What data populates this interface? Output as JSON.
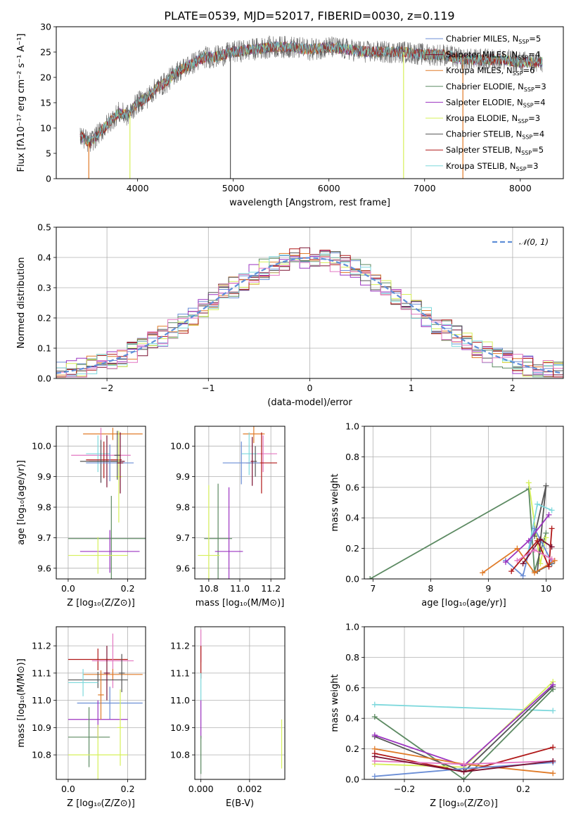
{
  "figure": {
    "title": "PLATE=0539, MJD=52017, FIBERID=0030, z=0.119",
    "colors": {
      "Chabrier MILES": "#6b8ed6",
      "Salpeter MILES": "#7a1030",
      "Kroupa MILES": "#e07b28",
      "Chabrier ELODIE": "#5c8a62",
      "Salpeter ELODIE": "#9b33c0",
      "Kroupa ELODIE": "#d6f05a",
      "Chabrier STELIB": "#555555",
      "Salpeter STELIB": "#b01818",
      "Kroupa STELIB": "#7dd8dc",
      "Pink": "#e377c2"
    }
  },
  "chart_data": [
    {
      "id": "spectrum",
      "type": "line",
      "xlabel": "wavelength [Angstrom, rest frame]",
      "ylabel": "Flux [fλ10⁻¹⁷ erg cm⁻² s⁻¹ A⁻¹]",
      "xlim": [
        3150,
        8450
      ],
      "ylim": [
        0,
        30
      ],
      "xticks": [
        4000,
        5000,
        6000,
        7000,
        8000
      ],
      "yticks": [
        0,
        5,
        10,
        15,
        20,
        25,
        30
      ],
      "grid": false,
      "legend_position": "top-right",
      "legend": [
        {
          "label": "Chabrier MILES, N",
          "sub": "SSP",
          "n": "=5",
          "color": "#6b8ed6"
        },
        {
          "label": "Salpeter MILES, N",
          "sub": "SSP",
          "n": "=4",
          "color": "#7a1030"
        },
        {
          "label": "Kroupa MILES, N",
          "sub": "SSP",
          "n": "=6",
          "color": "#e07b28"
        },
        {
          "label": "Chabrier ELODIE, N",
          "sub": "SSP",
          "n": "=3",
          "color": "#5c8a62"
        },
        {
          "label": "Salpeter ELODIE, N",
          "sub": "SSP",
          "n": "=4",
          "color": "#9b33c0"
        },
        {
          "label": "Kroupa ELODIE, N",
          "sub": "SSP",
          "n": "=3",
          "color": "#d6f05a"
        },
        {
          "label": "Chabrier STELIB, N",
          "sub": "SSP",
          "n": "=4",
          "color": "#555555"
        },
        {
          "label": "Salpeter STELIB, N",
          "sub": "SSP",
          "n": "=5",
          "color": "#b01818"
        },
        {
          "label": "Kroupa STELIB, N",
          "sub": "SSP",
          "n": "=3",
          "color": "#7dd8dc"
        }
      ],
      "envelope": {
        "x": [
          3400,
          3500,
          3600,
          3700,
          3800,
          3900,
          4000,
          4100,
          4200,
          4300,
          4400,
          4500,
          4600,
          4700,
          4800,
          4900,
          5000,
          5200,
          5400,
          5600,
          5800,
          6000,
          6200,
          6400,
          6600,
          6800,
          7000,
          7200,
          7400,
          7600,
          7800,
          8000,
          8200
        ],
        "y": [
          8.5,
          7,
          9,
          11,
          13,
          12.5,
          15,
          16,
          18,
          19,
          21,
          22,
          23,
          24,
          24,
          24.5,
          25,
          25.5,
          26,
          26,
          25.5,
          26,
          25.5,
          25,
          25,
          25,
          24.5,
          24.5,
          23.5,
          23.5,
          23.5,
          23,
          23
        ]
      },
      "dips": [
        {
          "x": 3490,
          "y": 0,
          "color": "#e07b28"
        },
        {
          "x": 3920,
          "y": 0,
          "color": "#d6f05a"
        },
        {
          "x": 4970,
          "y": 0,
          "color": "#555555"
        },
        {
          "x": 6780,
          "y": 0,
          "color": "#d6f05a"
        },
        {
          "x": 7400,
          "y": 0,
          "color": "#e07b28"
        }
      ]
    },
    {
      "id": "residuals",
      "type": "line",
      "xlabel": "(data-model)/error",
      "ylabel": "Normed distribution",
      "xlim": [
        -2.5,
        2.5
      ],
      "ylim": [
        0,
        0.5
      ],
      "xticks": [
        -2,
        -1,
        0,
        1,
        2
      ],
      "xticklabels": [
        "−2",
        "−1",
        "0",
        "1",
        "2"
      ],
      "yticks": [
        0,
        0.1,
        0.2,
        0.3,
        0.4,
        0.5
      ],
      "yticklabels": [
        "0.0",
        "0.1",
        "0.2",
        "0.3",
        "0.4",
        "0.5"
      ],
      "grid": true,
      "legend_position": "top-right",
      "gaussian_label": "𝒩(0, 1)",
      "gaussian_color": "#5f8fd8",
      "bin_width": 0.1
    },
    {
      "id": "age-vs-Z",
      "type": "scatter",
      "xlabel": "Z [log₁₀(Z/Z⊙)]",
      "ylabel": "age  [log₁₀(age/yr)]",
      "xlim": [
        -0.04,
        0.26
      ],
      "ylim": [
        9.565,
        10.065
      ],
      "xticks": [
        0,
        0.2
      ],
      "xticklabels": [
        "0.0",
        "0.2"
      ],
      "yticks": [
        9.6,
        9.7,
        9.8,
        9.9,
        10.0
      ],
      "yticklabels": [
        "9.6",
        "9.7",
        "9.8",
        "9.9",
        "10.0"
      ],
      "grid": true,
      "points": [
        {
          "x": 0.15,
          "xerr": 0.1,
          "y": 10.04,
          "yerr": 0.02,
          "color": "#e07b28"
        },
        {
          "x": 0.11,
          "xerr": 0.1,
          "y": 9.97,
          "yerr": 0.09,
          "color": "#e377c2"
        },
        {
          "x": 0.1,
          "xerr": 0.04,
          "y": 9.975,
          "yerr": 0.06,
          "color": "#7dd8dc"
        },
        {
          "x": 0.13,
          "xerr": 0.06,
          "y": 9.95,
          "yerr": 0.085,
          "color": "#7a1030"
        },
        {
          "x": 0.12,
          "xerr": 0.06,
          "y": 9.955,
          "yerr": 0.06,
          "color": "#b01818"
        },
        {
          "x": 0.11,
          "xerr": 0.07,
          "y": 9.95,
          "yerr": 0.07,
          "color": "#555555"
        },
        {
          "x": 0.14,
          "xerr": 0.08,
          "y": 9.945,
          "yerr": 0.06,
          "color": "#6b8ed6"
        },
        {
          "x": 0.145,
          "xerr": 0.145,
          "y": 9.697,
          "yerr": 0.14,
          "color": "#5c8a62"
        },
        {
          "x": 0.14,
          "xerr": 0.1,
          "y": 9.655,
          "yerr": 0.07,
          "color": "#9b33c0"
        },
        {
          "x": 0.1,
          "xerr": 0.1,
          "y": 9.642,
          "yerr": 0.06,
          "color": "#d6f05a"
        },
        {
          "x": 0.17,
          "xerr": 0.01,
          "y": 9.9,
          "yerr": 0.15,
          "color": "#d6f05a"
        },
        {
          "x": 0.165,
          "xerr": 0.01,
          "y": 9.97,
          "yerr": 0.08,
          "color": "#555555"
        },
        {
          "x": 0.175,
          "xerr": 0.01,
          "y": 9.945,
          "yerr": 0.1,
          "color": "#7a1030"
        }
      ]
    },
    {
      "id": "age-vs-mass",
      "type": "scatter",
      "xlabel": "mass [log₁₀(M/M⊙)]",
      "ylabel": "",
      "xlim": [
        10.71,
        11.29
      ],
      "ylim": [
        9.565,
        10.065
      ],
      "xticks": [
        10.8,
        11.0,
        11.2
      ],
      "xticklabels": [
        "10.8",
        "11.0",
        "11.2"
      ],
      "yticks": [
        9.6,
        9.7,
        9.8,
        9.9,
        10.0
      ],
      "yticklabels": [
        "9.6",
        "9.7",
        "9.8",
        "9.9",
        "10.0"
      ],
      "grid": true,
      "points": [
        {
          "x": 11.09,
          "xerr": 0.07,
          "y": 10.04,
          "yerr": 0.03,
          "color": "#e07b28"
        },
        {
          "x": 11.15,
          "xerr": 0.09,
          "y": 9.975,
          "yerr": 0.06,
          "color": "#e377c2"
        },
        {
          "x": 11.06,
          "xerr": 0.05,
          "y": 9.975,
          "yerr": 0.07,
          "color": "#7dd8dc"
        },
        {
          "x": 11.14,
          "xerr": 0.1,
          "y": 9.945,
          "yerr": 0.1,
          "color": "#b01818"
        },
        {
          "x": 11.1,
          "xerr": 0.01,
          "y": 9.95,
          "yerr": 0.05,
          "color": "#555555"
        },
        {
          "x": 11.01,
          "xerr": 0.12,
          "y": 9.945,
          "yerr": 0.07,
          "color": "#6b8ed6"
        },
        {
          "x": 11.08,
          "xerr": 0.01,
          "y": 9.95,
          "yerr": 0.08,
          "color": "#7a1030"
        },
        {
          "x": 10.86,
          "xerr": 0.09,
          "y": 9.697,
          "yerr": 0.18,
          "color": "#5c8a62"
        },
        {
          "x": 10.93,
          "xerr": 0.09,
          "y": 9.655,
          "yerr": 0.21,
          "color": "#9b33c0"
        },
        {
          "x": 10.8,
          "xerr": 0.07,
          "y": 9.642,
          "yerr": 0.23,
          "color": "#d6f05a"
        }
      ]
    },
    {
      "id": "massweight-vs-age",
      "type": "line",
      "xlabel": "age  [log₁₀(age/yr)]",
      "ylabel": "mass weight",
      "xlim": [
        6.85,
        10.3
      ],
      "ylim": [
        0,
        1.0
      ],
      "xticks": [
        7,
        8,
        9,
        10
      ],
      "xticklabels": [
        "7",
        "8",
        "9",
        "10"
      ],
      "yticks": [
        0,
        0.2,
        0.4,
        0.6,
        0.8,
        1.0
      ],
      "yticklabels": [
        "0.0",
        "0.2",
        "0.4",
        "0.6",
        "0.8",
        "1.0"
      ],
      "grid": true,
      "series": [
        {
          "color": "#5c8a62",
          "x": [
            6.95,
            9.7,
            9.8,
            10.0
          ],
          "y": [
            0.0,
            0.59,
            0.05,
            0.3
          ]
        },
        {
          "color": "#d6f05a",
          "x": [
            9.7,
            9.9,
            10.0
          ],
          "y": [
            0.63,
            0.1,
            0.27
          ]
        },
        {
          "color": "#555555",
          "x": [
            9.8,
            10.0,
            9.85,
            10.1
          ],
          "y": [
            0.28,
            0.61,
            0.05,
            0.1
          ]
        },
        {
          "color": "#7dd8dc",
          "x": [
            9.65,
            9.85,
            10.1
          ],
          "y": [
            0.1,
            0.49,
            0.45
          ]
        },
        {
          "color": "#6b8ed6",
          "x": [
            9.3,
            9.6,
            9.8,
            10.1
          ],
          "y": [
            0.12,
            0.02,
            0.33,
            0.11
          ]
        },
        {
          "color": "#9b33c0",
          "x": [
            9.3,
            9.7,
            10.05
          ],
          "y": [
            0.11,
            0.25,
            0.42
          ]
        },
        {
          "color": "#e07b28",
          "x": [
            8.9,
            9.5,
            9.8,
            10.15
          ],
          "y": [
            0.04,
            0.2,
            0.04,
            0.12
          ]
        },
        {
          "color": "#b01818",
          "x": [
            9.4,
            9.85,
            10.05,
            10.1
          ],
          "y": [
            0.05,
            0.25,
            0.08,
            0.33
          ]
        },
        {
          "color": "#7a1030",
          "x": [
            9.6,
            9.9,
            10.1
          ],
          "y": [
            0.1,
            0.26,
            0.21
          ]
        },
        {
          "color": "#e377c2",
          "x": [
            9.5,
            9.8,
            10.1
          ],
          "y": [
            0.12,
            0.19,
            0.13
          ]
        }
      ]
    },
    {
      "id": "mass-vs-Z",
      "type": "scatter",
      "xlabel": "Z [log₁₀(Z/Z⊙)]",
      "ylabel": "mass [log₁₀(M/M⊙)]",
      "xlim": [
        -0.04,
        0.26
      ],
      "ylim": [
        10.71,
        11.27
      ],
      "xticks": [
        0,
        0.2
      ],
      "xticklabels": [
        "0.0",
        "0.2"
      ],
      "yticks": [
        10.8,
        10.9,
        11.0,
        11.1,
        11.2
      ],
      "yticklabels": [
        "10.8",
        "10.9",
        "11.0",
        "11.1",
        "11.2"
      ],
      "grid": true,
      "points": [
        {
          "x": 0.1,
          "xerr": 0.1,
          "y": 11.15,
          "yerr": 0.04,
          "color": "#b01818"
        },
        {
          "x": 0.15,
          "xerr": 0.07,
          "y": 11.145,
          "yerr": 0.1,
          "color": "#e377c2"
        },
        {
          "x": 0.15,
          "xerr": 0.1,
          "y": 11.095,
          "yerr": 0.02,
          "color": "#e07b28"
        },
        {
          "x": 0.1,
          "xerr": 0.1,
          "y": 11.075,
          "yerr": 0.03,
          "color": "#555555"
        },
        {
          "x": 0.05,
          "xerr": 0.05,
          "y": 11.065,
          "yerr": 0.05,
          "color": "#7dd8dc"
        },
        {
          "x": 0.14,
          "xerr": 0.11,
          "y": 10.99,
          "yerr": 0.06,
          "color": "#6b8ed6"
        },
        {
          "x": 0.13,
          "xerr": 0.01,
          "y": 11.1,
          "yerr": 0.1,
          "color": "#7a1030"
        },
        {
          "x": 0.1,
          "xerr": 0.1,
          "y": 10.93,
          "yerr": 0.07,
          "color": "#9b33c0"
        },
        {
          "x": 0.07,
          "xerr": 0.07,
          "y": 10.865,
          "yerr": 0.11,
          "color": "#5c8a62"
        },
        {
          "x": 0.1,
          "xerr": 0.1,
          "y": 10.8,
          "yerr": 0.11,
          "color": "#d6f05a"
        },
        {
          "x": 0.11,
          "xerr": 0.01,
          "y": 11.02,
          "yerr": 0.09,
          "color": "#e07b28"
        },
        {
          "x": 0.18,
          "xerr": 0.01,
          "y": 11.1,
          "yerr": 0.07,
          "color": "#555555"
        },
        {
          "x": 0.175,
          "xerr": 0.01,
          "y": 10.9,
          "yerr": 0.14,
          "color": "#d6f05a"
        }
      ]
    },
    {
      "id": "mass-vs-EBV",
      "type": "scatter",
      "xlabel": "E(B-V)",
      "ylabel": "",
      "xlim": [
        -0.00025,
        0.00345
      ],
      "ylim": [
        10.71,
        11.27
      ],
      "xticks": [
        0,
        0.002
      ],
      "xticklabels": [
        "0.000",
        "0.002"
      ],
      "yticks": [
        10.8,
        10.9,
        11.0,
        11.1,
        11.2
      ],
      "yticklabels": [
        "10.8",
        "10.9",
        "11.0",
        "11.1",
        "11.2"
      ],
      "grid": true,
      "points": [
        {
          "x": 0.0,
          "xerr": 1e-05,
          "y": 11.2,
          "yerr": 0.06,
          "color": "#e377c2"
        },
        {
          "x": 0.0,
          "xerr": 1e-05,
          "y": 11.14,
          "yerr": 0.06,
          "color": "#b01818"
        },
        {
          "x": 0.0,
          "xerr": 1e-05,
          "y": 11.05,
          "yerr": 0.05,
          "color": "#7dd8dc"
        },
        {
          "x": 0.0,
          "xerr": 1e-05,
          "y": 10.93,
          "yerr": 0.07,
          "color": "#9b33c0"
        },
        {
          "x": 0.0,
          "xerr": 1e-05,
          "y": 10.8,
          "yerr": 0.07,
          "color": "#5c8a62"
        },
        {
          "x": 0.00332,
          "xerr": 1e-05,
          "y": 10.84,
          "yerr": 0.09,
          "color": "#d6f05a"
        }
      ]
    },
    {
      "id": "massweight-vs-Z",
      "type": "line",
      "xlabel": "Z [log₁₀(Z/Z⊙)]",
      "ylabel": "mass weight",
      "xlim": [
        -0.335,
        0.335
      ],
      "ylim": [
        0,
        1.0
      ],
      "xticks": [
        -0.2,
        0,
        0.2
      ],
      "xticklabels": [
        "−0.2",
        "0.0",
        "0.2"
      ],
      "yticks": [
        0,
        0.2,
        0.4,
        0.6,
        0.8,
        1.0
      ],
      "yticklabels": [
        "0.0",
        "0.2",
        "0.4",
        "0.6",
        "0.8",
        "1.0"
      ],
      "grid": true,
      "series": [
        {
          "color": "#7dd8dc",
          "x": [
            -0.3,
            0.3
          ],
          "y": [
            0.49,
            0.45
          ]
        },
        {
          "color": "#5c8a62",
          "x": [
            -0.3,
            0.0,
            0.3
          ],
          "y": [
            0.41,
            0.0,
            0.59
          ]
        },
        {
          "color": "#d6f05a",
          "x": [
            -0.3,
            0.0,
            0.3
          ],
          "y": [
            0.1,
            0.08,
            0.64
          ]
        },
        {
          "color": "#555555",
          "x": [
            -0.3,
            0.0,
            0.3
          ],
          "y": [
            0.28,
            0.05,
            0.61
          ]
        },
        {
          "color": "#9b33c0",
          "x": [
            -0.3,
            0.0,
            0.3
          ],
          "y": [
            0.29,
            0.09,
            0.62
          ]
        },
        {
          "color": "#e07b28",
          "x": [
            -0.3,
            0.0,
            0.3
          ],
          "y": [
            0.2,
            0.1,
            0.04
          ]
        },
        {
          "color": "#b01818",
          "x": [
            -0.3,
            0.0,
            0.3
          ],
          "y": [
            0.17,
            0.05,
            0.21
          ]
        },
        {
          "color": "#6b8ed6",
          "x": [
            -0.3,
            0.0,
            0.3
          ],
          "y": [
            0.02,
            0.07,
            0.11
          ]
        },
        {
          "color": "#e377c2",
          "x": [
            -0.3,
            0.0,
            0.3
          ],
          "y": [
            0.12,
            0.1,
            0.12
          ]
        },
        {
          "color": "#7a1030",
          "x": [
            -0.3,
            0.0,
            0.3
          ],
          "y": [
            0.15,
            0.05,
            0.12
          ]
        }
      ]
    }
  ]
}
